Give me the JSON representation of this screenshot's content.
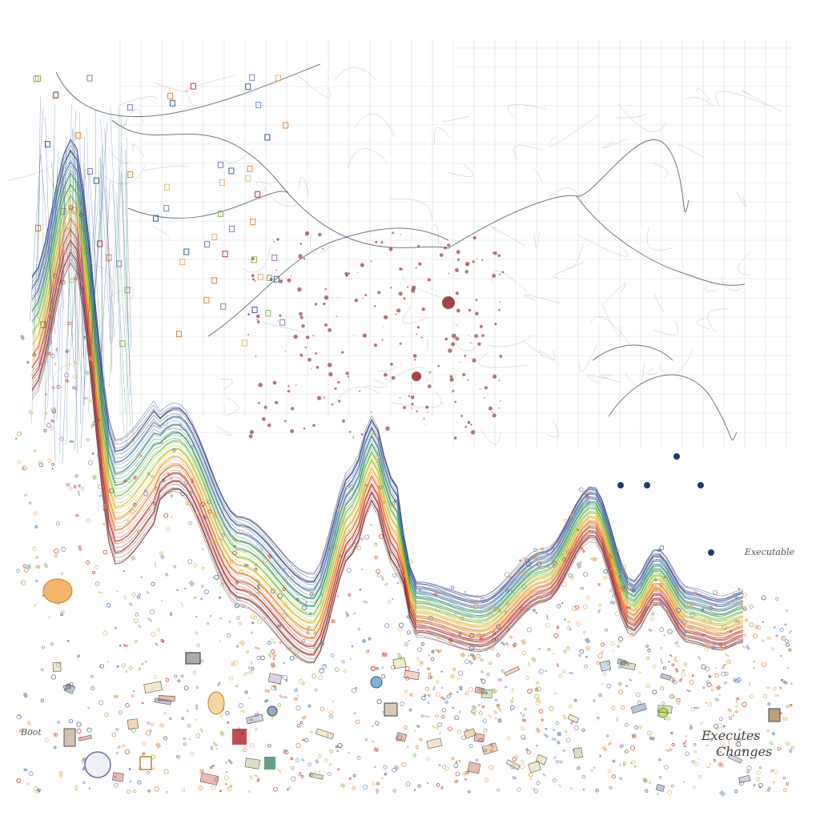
{
  "artwork": {
    "labels": {
      "left_small": "Boot",
      "bottom_right_line1": "Executes",
      "bottom_right_line2": "Changes",
      "right_mid": "Executable"
    },
    "palette": {
      "background": "#ffffff",
      "grid": "#dcdcdc",
      "wave_colors": [
        "#2b3a7a",
        "#3f6fa8",
        "#2e8b57",
        "#7bbf3a",
        "#e0b020",
        "#e06a1a",
        "#b22222",
        "#7a2a2a"
      ],
      "dust_colors": [
        "#d9873a",
        "#e8b070",
        "#c0392b",
        "#6a8fb5",
        "#3a5f8a",
        "#8fb05a",
        "#9a7ab0",
        "#d8c06a"
      ],
      "network_line": "#3a4a60",
      "splash": "#8b1a1a"
    }
  }
}
